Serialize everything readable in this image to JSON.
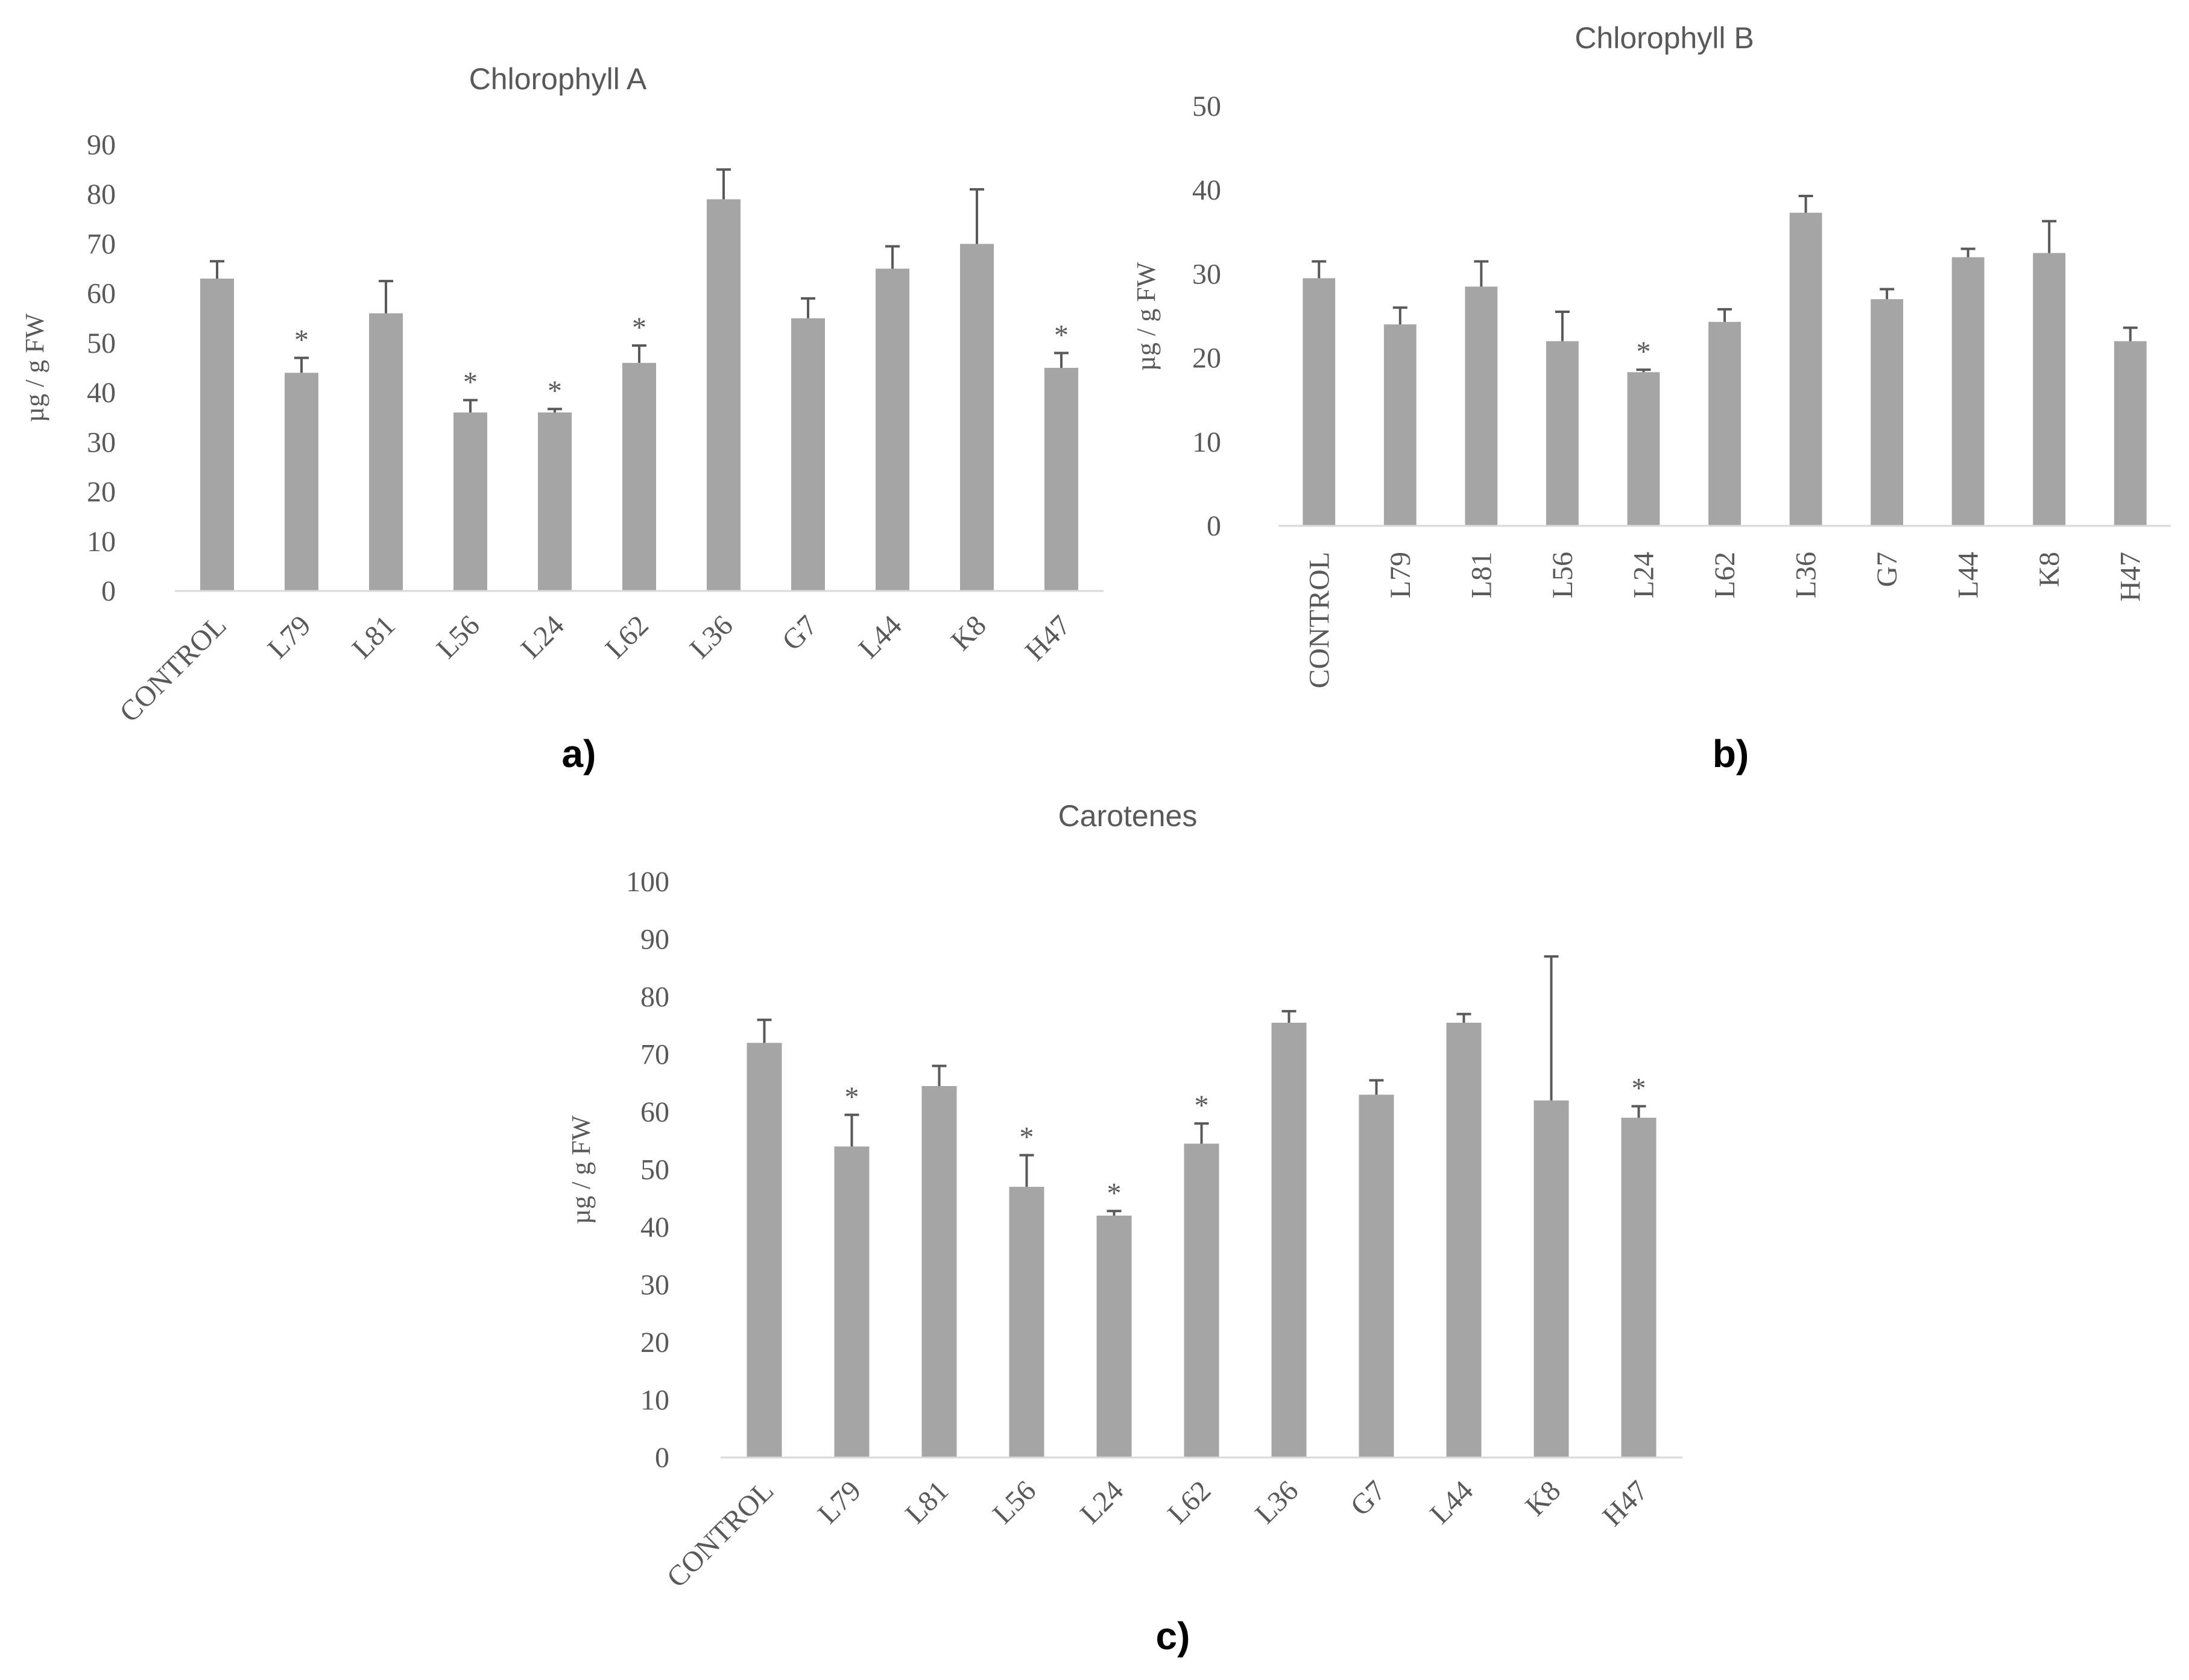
{
  "chart_data": [
    {
      "id": "chl_a",
      "type": "bar",
      "title": "Chlorophyll A",
      "panel_label": "a)",
      "ylabel": "µg / g FW",
      "xlabel": "",
      "ylim": [
        0,
        90
      ],
      "yticks": [
        0,
        10,
        20,
        30,
        40,
        50,
        60,
        70,
        80,
        90
      ],
      "categories": [
        "CONTROL",
        "L79",
        "L81",
        "L56",
        "L24",
        "L62",
        "L36",
        "G7",
        "L44",
        "K8",
        "H47"
      ],
      "values": [
        63,
        44,
        56,
        36,
        36,
        46,
        79,
        55,
        65,
        70,
        45
      ],
      "errors": [
        3.5,
        3,
        6.5,
        2.5,
        0.7,
        3.5,
        6,
        4,
        4.5,
        11,
        3
      ],
      "significant": [
        false,
        true,
        false,
        true,
        true,
        true,
        false,
        false,
        false,
        false,
        true
      ],
      "marker": "*",
      "color": "#a5a5a5"
    },
    {
      "id": "chl_b",
      "type": "bar",
      "title": "Chlorophyll B",
      "panel_label": "b)",
      "ylabel": "µg / g FW",
      "xlabel": "",
      "ylim": [
        0,
        50
      ],
      "yticks": [
        0,
        10,
        20,
        30,
        40,
        50
      ],
      "categories": [
        "CONTROL",
        "L79",
        "L81",
        "L56",
        "L24",
        "L62",
        "L36",
        "G7",
        "L44",
        "K8",
        "H47"
      ],
      "values": [
        29.5,
        24,
        28.5,
        22,
        18.3,
        24.3,
        37.3,
        27,
        32,
        32.5,
        22
      ],
      "errors": [
        2,
        2,
        3,
        3.5,
        0.3,
        1.5,
        2,
        1.2,
        1,
        3.8,
        1.6
      ],
      "significant": [
        false,
        false,
        false,
        false,
        true,
        false,
        false,
        false,
        false,
        false,
        false
      ],
      "marker": "*",
      "color": "#a5a5a5"
    },
    {
      "id": "carotenes",
      "type": "bar",
      "title": "Carotenes",
      "panel_label": "c)",
      "ylabel": "µg / g FW",
      "xlabel": "",
      "ylim": [
        0,
        100
      ],
      "yticks": [
        0,
        10,
        20,
        30,
        40,
        50,
        60,
        70,
        80,
        90,
        100
      ],
      "categories": [
        "CONTROL",
        "L79",
        "L81",
        "L56",
        "L24",
        "L62",
        "L36",
        "G7",
        "L44",
        "K8",
        "H47"
      ],
      "values": [
        72,
        54,
        64.5,
        47,
        42,
        54.5,
        75.5,
        63,
        75.5,
        62,
        59
      ],
      "errors": [
        4,
        5.5,
        3.5,
        5.5,
        0.8,
        3.5,
        2,
        2.5,
        1.5,
        25,
        2
      ],
      "significant": [
        false,
        true,
        false,
        true,
        true,
        true,
        false,
        false,
        false,
        false,
        true
      ],
      "marker": "*",
      "color": "#a5a5a5"
    }
  ]
}
